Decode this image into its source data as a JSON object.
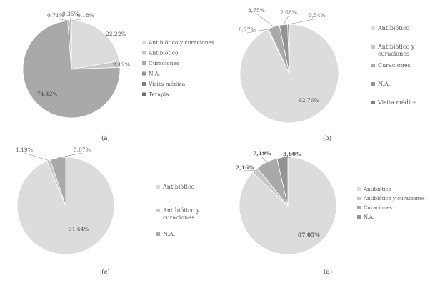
{
  "chart_data": [
    {
      "type": "pie",
      "panel_label": "(a)",
      "categories": [
        "Antibiótico y curaciones",
        "Antibiótico",
        "Curaciones",
        "N.A.",
        "Visita médica",
        "Terapia"
      ],
      "values": [
        22.22,
        2.12,
        74.42,
        0.71,
        0.35,
        0.18
      ],
      "value_labels": [
        "22,22%",
        "2,12%",
        "74,42%",
        "0,71%",
        "0,35%",
        "0,18%"
      ],
      "colors": [
        "#dcdcdc",
        "#c8c8c8",
        "#a9a9a9",
        "#939393",
        "#7f7f7f",
        "#6e6e6e"
      ],
      "legend": [
        "Antibiótico y curaciones",
        "Antibiótico",
        "Curaciones",
        "N.A.",
        "Visita médica",
        "Terapia"
      ],
      "legend_position": "right"
    },
    {
      "type": "pie",
      "panel_label": "(b)",
      "categories": [
        "Antibiótico",
        "Antibiótico y curaciones",
        "Curaciones",
        "N.A.",
        "Visita médica"
      ],
      "values": [
        92.76,
        0.27,
        3.75,
        2.68,
        0.54
      ],
      "value_labels": [
        "92,76%",
        "0,27%",
        "3,75%",
        "2,68%",
        "0,54%"
      ],
      "colors": [
        "#dcdcdc",
        "#c8c8c8",
        "#a9a9a9",
        "#939393",
        "#7f7f7f"
      ],
      "legend": [
        "Antibiótico",
        "Antibiótico y curaciones",
        "Curaciones",
        "N.A.",
        "Visita médica"
      ],
      "legend_position": "right"
    },
    {
      "type": "pie",
      "panel_label": "(c)",
      "categories": [
        "Antibiótico",
        "Antibiótico y curaciones",
        "N.A."
      ],
      "values": [
        91.64,
        1.19,
        5.07
      ],
      "value_labels": [
        "91,64%",
        "1,19%",
        "5,07%"
      ],
      "colors": [
        "#dcdcdc",
        "#c8c8c8",
        "#a9a9a9"
      ],
      "legend": [
        "Antibiótico",
        "Antibiótico y curaciones",
        "N.A."
      ],
      "legend_position": "right"
    },
    {
      "type": "pie",
      "panel_label": "(d)",
      "categories": [
        "Antibiótico",
        "Antibiótico y curaciones",
        "Curaciones",
        "N.A."
      ],
      "values": [
        87.05,
        2.16,
        7.19,
        3.6
      ],
      "value_labels": [
        "87,05%",
        "2,16%",
        "7,19%",
        "3,60%"
      ],
      "colors": [
        "#dcdcdc",
        "#c8c8c8",
        "#a9a9a9",
        "#939393"
      ],
      "legend": [
        "Antibiótico",
        "Antibiótico y curaciones",
        "Curaciones",
        "N.A."
      ],
      "legend_position": "right"
    }
  ]
}
